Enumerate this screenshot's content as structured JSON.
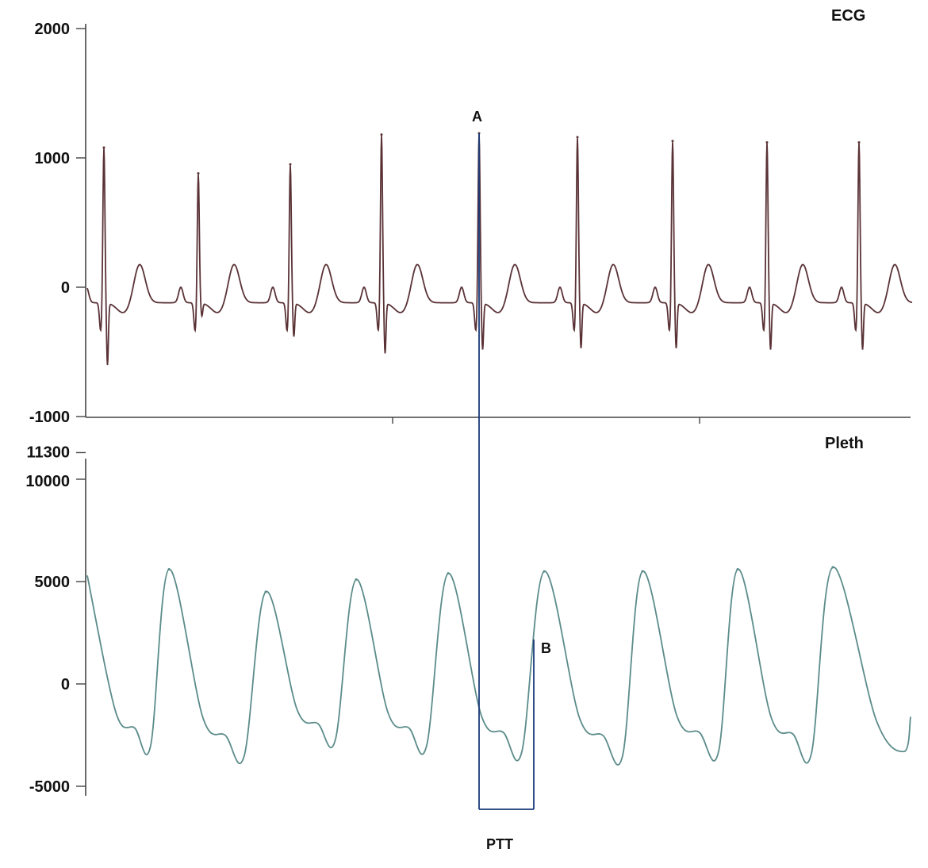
{
  "chart_data": [
    {
      "type": "line",
      "title": "ECG",
      "ylim": [
        -1000,
        2000
      ],
      "yticks": [
        2000,
        1000,
        0,
        -1000
      ],
      "series": [
        {
          "color": "#5a3236",
          "beats": [
            {
              "r_peak": 1080,
              "s_trough": -580
            },
            {
              "r_peak": 880,
              "s_trough": -200
            },
            {
              "r_peak": 950,
              "s_trough": -360
            },
            {
              "r_peak": 1180,
              "s_trough": -490
            },
            {
              "r_peak": 1190,
              "s_trough": -460
            },
            {
              "r_peak": 1160,
              "s_trough": -450
            },
            {
              "r_peak": 1130,
              "s_trough": -450
            },
            {
              "r_peak": 1120,
              "s_trough": -460
            },
            {
              "r_peak": 1120,
              "s_trough": -460
            }
          ]
        }
      ],
      "annotations": [
        {
          "text": "A"
        }
      ]
    },
    {
      "type": "line",
      "title": "Pleth",
      "ylim": [
        -5000,
        11300
      ],
      "yticks": [
        11300,
        10000,
        5000,
        0,
        -5000
      ],
      "series": [
        {
          "color": "#5b8c8a",
          "peaks": [
            5600,
            4500,
            5100,
            5400,
            5500,
            5500,
            5600,
            5700
          ],
          "troughs": [
            -3000,
            -3500,
            -2700,
            -3000,
            -3300,
            -3500,
            -3300,
            -3400
          ]
        }
      ],
      "annotations": [
        {
          "text": "B"
        },
        {
          "text": "PTT"
        }
      ]
    }
  ],
  "colors": {
    "ptt_marker": "#1a3a7a",
    "axis": "#444444"
  }
}
